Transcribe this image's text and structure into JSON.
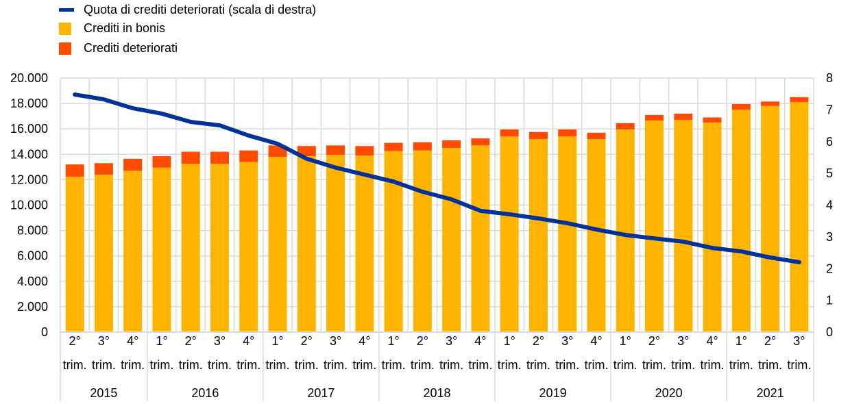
{
  "chart_data": {
    "type": "bar",
    "stacked": true,
    "categories": [
      {
        "quarter": "2°",
        "suffix": "trim.",
        "year": "2015"
      },
      {
        "quarter": "3°",
        "suffix": "trim.",
        "year": "2015"
      },
      {
        "quarter": "4°",
        "suffix": "trim.",
        "year": "2015"
      },
      {
        "quarter": "1°",
        "suffix": "trim.",
        "year": "2016"
      },
      {
        "quarter": "2°",
        "suffix": "trim.",
        "year": "2016"
      },
      {
        "quarter": "3°",
        "suffix": "trim.",
        "year": "2016"
      },
      {
        "quarter": "4°",
        "suffix": "trim.",
        "year": "2016"
      },
      {
        "quarter": "1°",
        "suffix": "trim.",
        "year": "2017"
      },
      {
        "quarter": "2°",
        "suffix": "trim.",
        "year": "2017"
      },
      {
        "quarter": "3°",
        "suffix": "trim.",
        "year": "2017"
      },
      {
        "quarter": "4°",
        "suffix": "trim.",
        "year": "2017"
      },
      {
        "quarter": "1°",
        "suffix": "trim.",
        "year": "2018"
      },
      {
        "quarter": "2°",
        "suffix": "trim.",
        "year": "2018"
      },
      {
        "quarter": "3°",
        "suffix": "trim.",
        "year": "2018"
      },
      {
        "quarter": "4°",
        "suffix": "trim.",
        "year": "2018"
      },
      {
        "quarter": "1°",
        "suffix": "trim.",
        "year": "2019"
      },
      {
        "quarter": "2°",
        "suffix": "trim.",
        "year": "2019"
      },
      {
        "quarter": "3°",
        "suffix": "trim.",
        "year": "2019"
      },
      {
        "quarter": "4°",
        "suffix": "trim.",
        "year": "2019"
      },
      {
        "quarter": "1°",
        "suffix": "trim.",
        "year": "2020"
      },
      {
        "quarter": "2°",
        "suffix": "trim.",
        "year": "2020"
      },
      {
        "quarter": "3°",
        "suffix": "trim.",
        "year": "2020"
      },
      {
        "quarter": "4°",
        "suffix": "trim.",
        "year": "2020"
      },
      {
        "quarter": "1°",
        "suffix": "trim.",
        "year": "2021"
      },
      {
        "quarter": "2°",
        "suffix": "trim.",
        "year": "2021"
      },
      {
        "quarter": "3°",
        "suffix": "trim.",
        "year": "2021"
      }
    ],
    "years": [
      "2015",
      "2016",
      "2017",
      "2018",
      "2019",
      "2020",
      "2021"
    ],
    "series": [
      {
        "name": "Crediti in bonis",
        "kind": "bar",
        "axis": "left",
        "color": "#FFB400",
        "values": [
          12240,
          12400,
          12700,
          12950,
          13250,
          13250,
          13400,
          13800,
          13850,
          13950,
          13900,
          14250,
          14300,
          14500,
          14700,
          15400,
          15200,
          15400,
          15200,
          15950,
          16650,
          16700,
          16500,
          17500,
          17800,
          18100
        ]
      },
      {
        "name": "Crediti deteriorati",
        "kind": "bar",
        "axis": "left",
        "color": "#FF4B00",
        "values": [
          960,
          900,
          950,
          900,
          950,
          950,
          900,
          900,
          800,
          750,
          750,
          650,
          650,
          600,
          550,
          550,
          550,
          550,
          500,
          500,
          450,
          500,
          400,
          450,
          350,
          400
        ]
      },
      {
        "name": "Quota di crediti deteriorati (scala di destra)",
        "kind": "line",
        "axis": "right",
        "color": "#003299",
        "values": [
          7.48,
          7.33,
          7.05,
          6.88,
          6.62,
          6.51,
          6.19,
          5.93,
          5.46,
          5.18,
          4.96,
          4.74,
          4.42,
          4.18,
          3.82,
          3.71,
          3.58,
          3.43,
          3.23,
          3.06,
          2.95,
          2.85,
          2.65,
          2.54,
          2.35,
          2.2
        ]
      }
    ],
    "y_left": {
      "min": 0,
      "max": 20000,
      "ticks": [
        "0",
        "2.000",
        "4.000",
        "6.000",
        "8.000",
        "10.000",
        "12.000",
        "14.000",
        "16.000",
        "18.000",
        "20.000"
      ]
    },
    "y_right": {
      "min": 0,
      "max": 8,
      "ticks": [
        "0",
        "1",
        "2",
        "3",
        "4",
        "5",
        "6",
        "7",
        "8"
      ]
    },
    "grid": true,
    "legend_placement": "top-left"
  }
}
